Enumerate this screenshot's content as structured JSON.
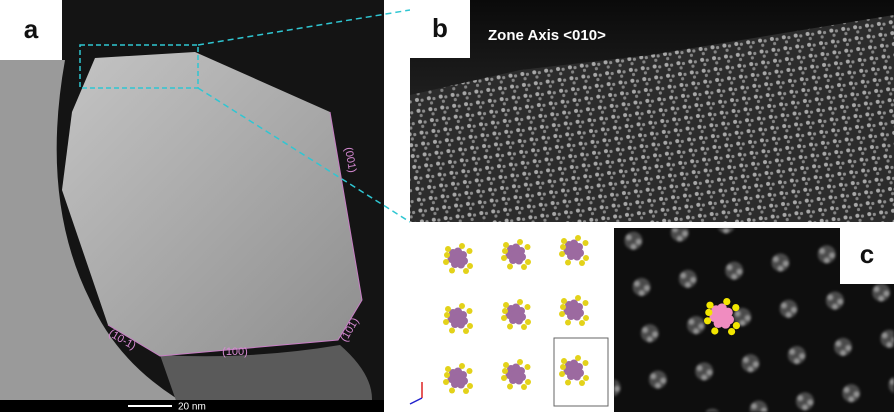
{
  "panels": {
    "a": {
      "label": "a",
      "facets": [
        "(001)",
        "(101)",
        "(100)",
        "(10-1)"
      ],
      "scale_bar": "20 nm"
    },
    "b": {
      "label": "b",
      "title": "Zone Axis <010>"
    },
    "c": {
      "label": "c"
    }
  }
}
